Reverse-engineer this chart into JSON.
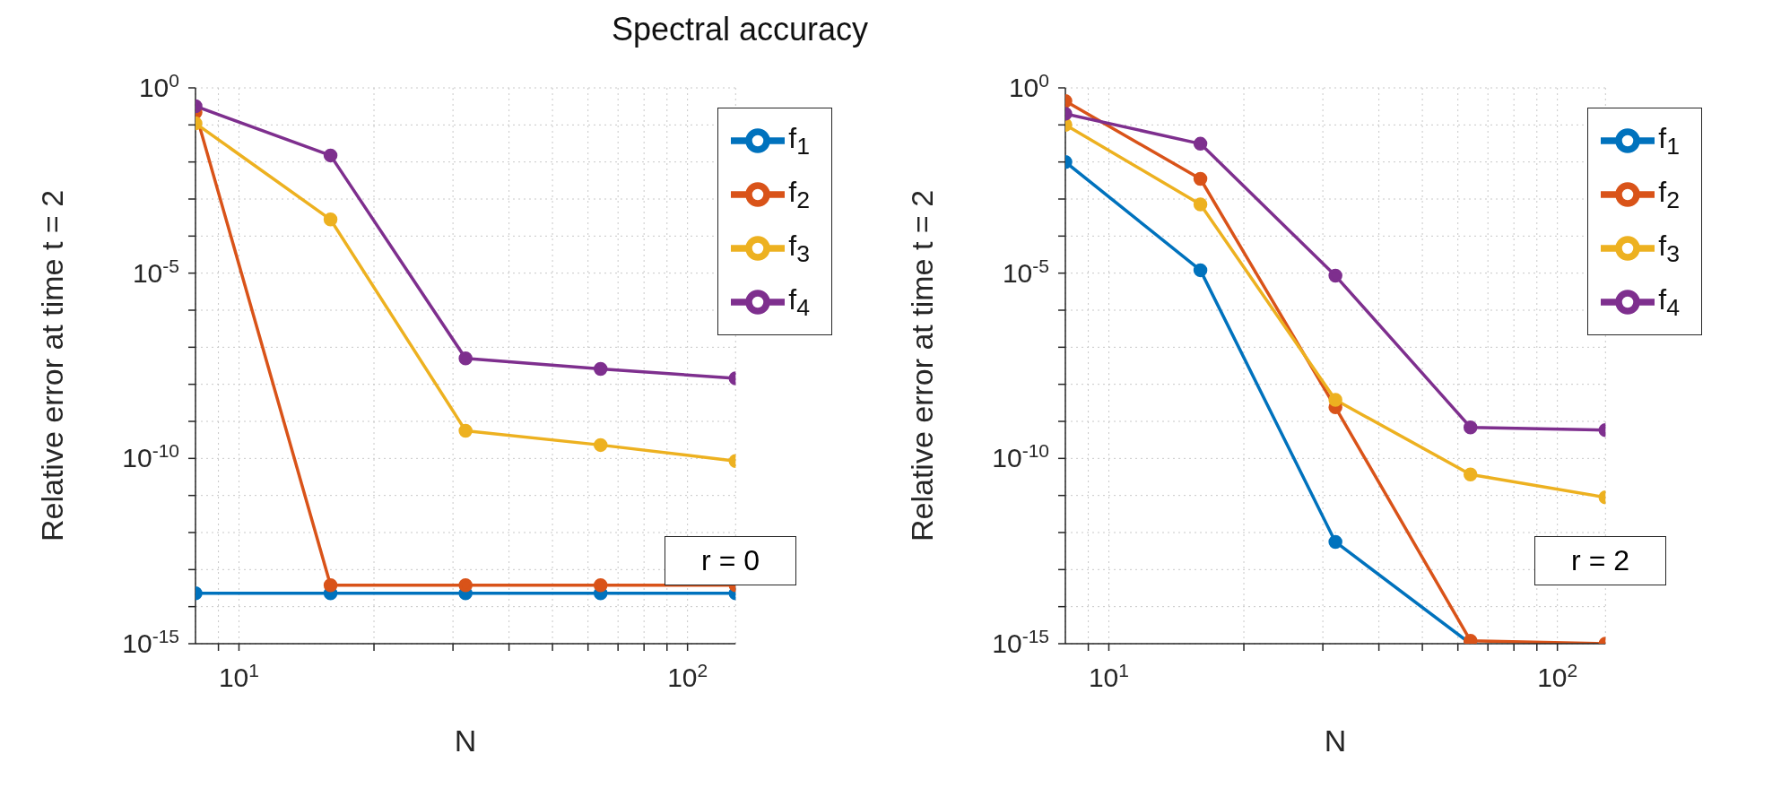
{
  "chart_data": [
    {
      "type": "line",
      "title": "Spectral accuracy",
      "xlabel": "N",
      "ylabel": "Relative error at time t = 2",
      "log": "xy",
      "grid": true,
      "legend": "top right",
      "marker": "circle",
      "line_style": "solid",
      "xlim": [
        8,
        128
      ],
      "ylim": [
        1e-15,
        1
      ],
      "xticks": [
        {
          "value": 9,
          "label": null
        },
        {
          "value": 10,
          "label": "10$^{1}$"
        },
        {
          "value": 20,
          "label": null
        },
        {
          "value": 30,
          "label": null
        },
        {
          "value": 40,
          "label": null
        },
        {
          "value": 50,
          "label": null
        },
        {
          "value": 60,
          "label": null
        },
        {
          "value": 70,
          "label": null
        },
        {
          "value": 80,
          "label": null
        },
        {
          "value": 90,
          "label": null
        },
        {
          "value": 100,
          "label": "10$^{2}$"
        }
      ],
      "yticks": [
        {
          "value": 1e-15,
          "label": "10$^{-15}$"
        },
        {
          "value": 1e-14,
          "label": null
        },
        {
          "value": 1e-13,
          "label": null
        },
        {
          "value": 1e-12,
          "label": null
        },
        {
          "value": 1e-11,
          "label": null
        },
        {
          "value": 1e-10,
          "label": "10$^{-10}$"
        },
        {
          "value": 1e-09,
          "label": null
        },
        {
          "value": 1e-08,
          "label": null
        },
        {
          "value": 1e-07,
          "label": null
        },
        {
          "value": 1e-06,
          "label": null
        },
        {
          "value": 1e-05,
          "label": "10$^{-5}$"
        },
        {
          "value": 0.0001,
          "label": null
        },
        {
          "value": 0.001,
          "label": null
        },
        {
          "value": 0.01,
          "label": null
        },
        {
          "value": 0.1,
          "label": null
        },
        {
          "value": 1,
          "label": "10$^{0}$"
        }
      ],
      "x": [
        8,
        16,
        32,
        64,
        128
      ],
      "series": [
        {
          "name": "f$_{1}$",
          "color": "#0072bd",
          "values": [
            2.3e-14,
            2.3e-14,
            2.3e-14,
            2.3e-14,
            2.3e-14
          ]
        },
        {
          "name": "f$_{2}$",
          "color": "#d95319",
          "values": [
            0.22,
            3.8e-14,
            3.8e-14,
            3.8e-14,
            3.8e-14
          ]
        },
        {
          "name": "f$_{3}$",
          "color": "#edb120",
          "values": [
            0.11,
            0.00028,
            5.6e-10,
            2.3e-10,
            8.5e-11
          ]
        },
        {
          "name": "f$_{4}$",
          "color": "#7e2f8e",
          "values": [
            0.32,
            0.015,
            5e-08,
            2.6e-08,
            1.45e-08
          ]
        }
      ],
      "annotations": [
        "r = 0"
      ]
    },
    {
      "type": "line",
      "xlabel": "N",
      "ylabel": "Relative error at time t = 2",
      "log": "xy",
      "grid": true,
      "legend": "top right",
      "marker": "circle",
      "line_style": "solid",
      "xlim": [
        8,
        128
      ],
      "ylim": [
        1e-15,
        1
      ],
      "xticks": [
        {
          "value": 9,
          "label": null
        },
        {
          "value": 10,
          "label": "10$^{1}$"
        },
        {
          "value": 20,
          "label": null
        },
        {
          "value": 30,
          "label": null
        },
        {
          "value": 40,
          "label": null
        },
        {
          "value": 50,
          "label": null
        },
        {
          "value": 60,
          "label": null
        },
        {
          "value": 70,
          "label": null
        },
        {
          "value": 80,
          "label": null
        },
        {
          "value": 90,
          "label": null
        },
        {
          "value": 100,
          "label": "10$^{2}$"
        }
      ],
      "yticks": [
        {
          "value": 1e-15,
          "label": "10$^{-15}$"
        },
        {
          "value": 1e-14,
          "label": null
        },
        {
          "value": 1e-13,
          "label": null
        },
        {
          "value": 1e-12,
          "label": null
        },
        {
          "value": 1e-11,
          "label": null
        },
        {
          "value": 1e-10,
          "label": "10$^{-10}$"
        },
        {
          "value": 1e-09,
          "label": null
        },
        {
          "value": 1e-08,
          "label": null
        },
        {
          "value": 1e-07,
          "label": null
        },
        {
          "value": 1e-06,
          "label": null
        },
        {
          "value": 1e-05,
          "label": "10$^{-5}$"
        },
        {
          "value": 0.0001,
          "label": null
        },
        {
          "value": 0.001,
          "label": null
        },
        {
          "value": 0.01,
          "label": null
        },
        {
          "value": 0.1,
          "label": null
        },
        {
          "value": 1,
          "label": "10$^{0}$"
        }
      ],
      "x": [
        8,
        16,
        32,
        64,
        128
      ],
      "series": [
        {
          "name": "f$_{1}$",
          "color": "#0072bd",
          "values": [
            0.01,
            1.2e-05,
            5.6e-13,
            1e-15,
            null
          ]
        },
        {
          "name": "f$_{2}$",
          "color": "#d95319",
          "values": [
            0.44,
            0.0035,
            2.4e-09,
            1.2e-15,
            1e-15
          ]
        },
        {
          "name": "f$_{3}$",
          "color": "#edb120",
          "values": [
            0.1,
            0.00072,
            3.8e-09,
            3.7e-11,
            8.9e-12
          ]
        },
        {
          "name": "f$_{4}$",
          "color": "#7e2f8e",
          "values": [
            0.2,
            0.031,
            8.5e-06,
            6.9e-10,
            5.8e-10
          ]
        }
      ],
      "annotations": [
        "r = 2"
      ]
    }
  ]
}
